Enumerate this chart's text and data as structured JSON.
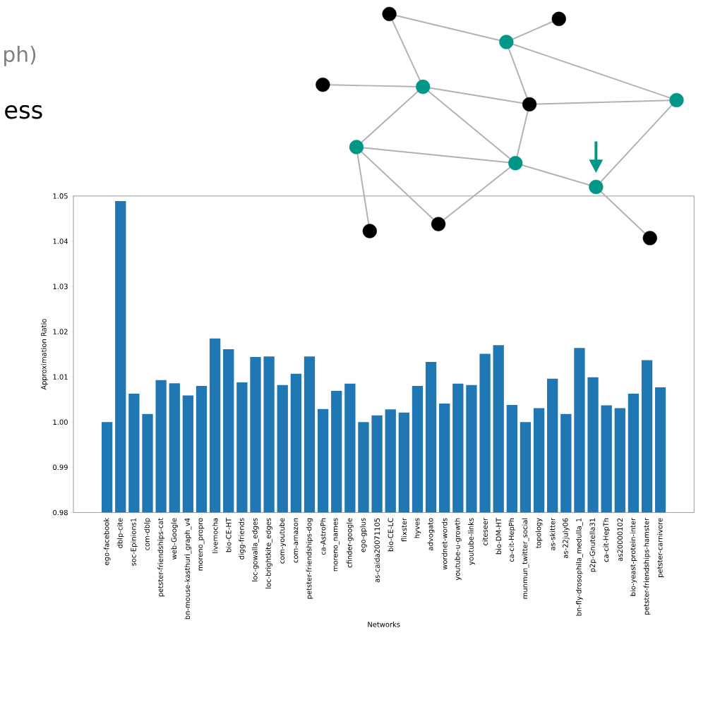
{
  "chart_data": {
    "type": "bar",
    "xlabel": "Networks",
    "ylabel": "Approximation Ratio",
    "annotations": [
      "ph)",
      "ess"
    ],
    "categories": [
      "ego-facebook",
      "dblp-cite",
      "soc-Epinions1",
      "com-dblp",
      "petster-friendships-cat",
      "web-Google",
      "bn-mouse-kasthuri_graph_v4",
      "moreno_propro",
      "livemocha",
      "bio-CE-HT",
      "digg-friends",
      "loc-gowalla_edges",
      "loc-brightkite_edges",
      "com-youtube",
      "com-amazon",
      "petster-friendships-dog",
      "ca-AstroPh",
      "moreno_names",
      "cfinder-google",
      "ego-gplus",
      "as-caida20071105",
      "bio-CE-LC",
      "flixster",
      "hyves",
      "advogato",
      "wordnet-words",
      "youtube-u-growth",
      "youtube-links",
      "citeseer",
      "bio-DM-HT",
      "ca-cit-HepPh",
      "munmun_twitter_social",
      "topology",
      "as-skitter",
      "as-22july06",
      "bn-fly-drosophila_medulla_1",
      "p2p-Gnutella31",
      "ca-cit-HepTh",
      "as20000102",
      "bio-yeast-protein-inter",
      "petster-friendships-hamster",
      "petster-carnivore"
    ],
    "values": [
      1.0,
      1.0489,
      1.0063,
      1.0018,
      1.0093,
      1.0086,
      1.0059,
      1.008,
      1.0185,
      1.0161,
      1.0088,
      1.0144,
      1.0145,
      1.0082,
      1.0107,
      1.0145,
      1.0029,
      1.0069,
      1.0085,
      1.0,
      1.0015,
      1.0028,
      1.0021,
      1.008,
      1.0133,
      1.0041,
      1.0085,
      1.0082,
      1.0151,
      1.017,
      1.0038,
      1.0,
      1.0031,
      1.0096,
      1.0018,
      1.0164,
      1.0099,
      1.0037,
      1.0031,
      1.0063,
      1.0137,
      1.0077
    ],
    "color": "#1f77b4",
    "ylim": [
      0.98,
      1.05
    ],
    "yticks": [
      {
        "value": 0.98,
        "label": "0.98"
      },
      {
        "value": 0.99,
        "label": "0.99"
      },
      {
        "value": 1.0,
        "label": "1.00"
      },
      {
        "value": 1.01,
        "label": "1.01"
      },
      {
        "value": 1.02,
        "label": "1.02"
      },
      {
        "value": 1.03,
        "label": "1.03"
      },
      {
        "value": 1.04,
        "label": "1.04"
      },
      {
        "value": 1.05,
        "label": "1.05"
      }
    ],
    "grid": false
  }
}
